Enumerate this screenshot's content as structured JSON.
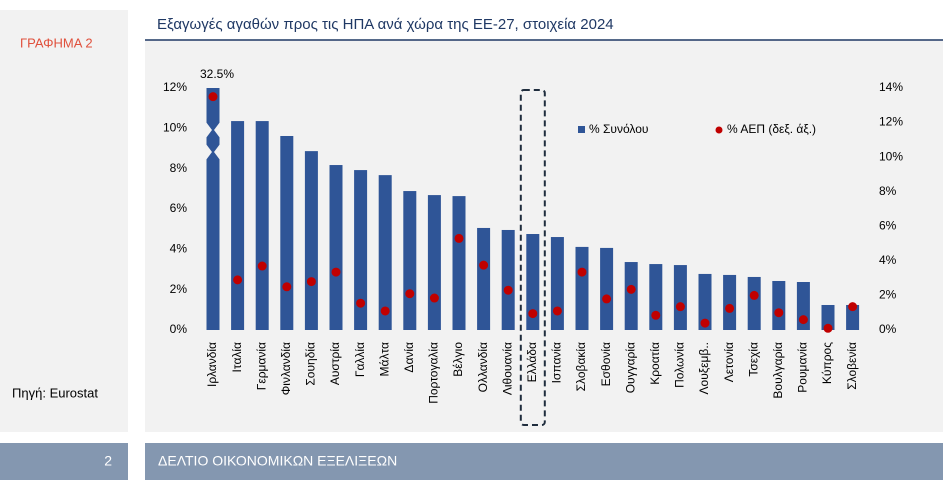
{
  "page": {
    "label": "ΓΡΑΦΗΜΑ 2",
    "source": "Πηγή: Eurostat",
    "page_number": 2,
    "footer_title": "ΔΕΛΤΙΟ ΟΙΚΟΝΟΜΙΚΩΝ ΕΞΕΛΙΞΕΩΝ"
  },
  "chart_data": {
    "type": "bar",
    "title": "Εξαγωγές αγαθών προς τις ΗΠΑ ανά χώρα της ΕΕ-27, στοιχεία 2024",
    "categories": [
      "Ιρλανδία",
      "Ιταλία",
      "Γερμανία",
      "Φινλανδία",
      "Σουηδία",
      "Αυστρία",
      "Γαλλία",
      "Μάλτα",
      "Δανία",
      "Πορτογαλία",
      "Βέλγιο",
      "Ολλανδία",
      "Λιθουανία",
      "Ελλάδα",
      "Ισπανία",
      "Σλοβακία",
      "Εσθονία",
      "Ουγγαρία",
      "Κροατία",
      "Πολωνία",
      "Λουξεμβ..",
      "Λετονία",
      "Τσεχία",
      "Βουλγαρία",
      "Ρουμανία",
      "Κύπρος",
      "Σλοβενία"
    ],
    "series": [
      {
        "name": "% Συνόλου",
        "color": "#2f5597",
        "values": [
          32.5,
          10.36,
          10.36,
          9.62,
          8.87,
          8.18,
          7.93,
          7.68,
          6.89,
          6.69,
          6.64,
          5.06,
          4.96,
          4.76,
          4.61,
          4.12,
          4.07,
          3.37,
          3.27,
          3.22,
          2.78,
          2.73,
          2.63,
          2.43,
          2.38,
          1.24,
          1.24
        ],
        "value_labels": [
          "32.5%",
          null,
          null,
          null,
          null,
          null,
          null,
          null,
          null,
          null,
          null,
          null,
          null,
          null,
          null,
          null,
          null,
          null,
          null,
          null,
          null,
          null,
          null,
          null,
          null,
          null,
          null
        ]
      },
      {
        "name": "% ΑΕΠ (δεξ. άξ.)",
        "color": "#c00000",
        "type": "scatter",
        "axis": "y2",
        "values": [
          13.5,
          2.9,
          3.7,
          2.5,
          2.8,
          3.35,
          1.55,
          1.1,
          2.1,
          1.85,
          5.3,
          3.75,
          2.3,
          0.95,
          1.1,
          3.35,
          1.8,
          2.35,
          0.85,
          1.35,
          0.4,
          1.25,
          2.0,
          1.0,
          0.6,
          0.1,
          1.35
        ]
      }
    ],
    "ylim": [
      0,
      12
    ],
    "yticks": [
      {
        "value": 0,
        "label": "0%"
      },
      {
        "value": 2,
        "label": "2%"
      },
      {
        "value": 4,
        "label": "4%"
      },
      {
        "value": 6,
        "label": "6%"
      },
      {
        "value": 8,
        "label": "8%"
      },
      {
        "value": 10,
        "label": "10%"
      },
      {
        "value": 12,
        "label": "12%"
      }
    ],
    "y2lim": [
      0,
      14
    ],
    "y2ticks": [
      {
        "value": 0,
        "label": "0%"
      },
      {
        "value": 2,
        "label": "2%"
      },
      {
        "value": 4,
        "label": "4%"
      },
      {
        "value": 6,
        "label": "6%"
      },
      {
        "value": 8,
        "label": "8%"
      },
      {
        "value": 10,
        "label": "10%"
      },
      {
        "value": 12,
        "label": "12%"
      },
      {
        "value": 14,
        "label": "14%"
      }
    ],
    "grid": false
  }
}
